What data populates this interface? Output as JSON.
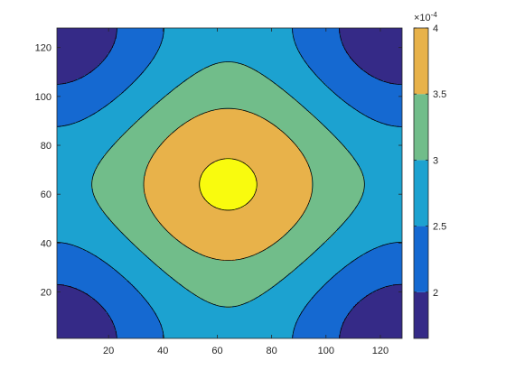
{
  "chart_data": {
    "type": "contour",
    "colormap": "parula",
    "x": {
      "min": 1,
      "max": 128,
      "ticks": [
        20,
        40,
        60,
        80,
        100,
        120
      ]
    },
    "y": {
      "min": 1,
      "max": 128,
      "ticks": [
        20,
        40,
        60,
        80,
        100,
        120
      ]
    },
    "levels": [
      0.00015,
      0.0002,
      0.00025,
      0.0003,
      0.00035,
      0.0004
    ],
    "level_colors": [
      "#352a87",
      "#1569d1",
      "#1ca2d0",
      "#71bd8a",
      "#e8b24a",
      "#f9fb0e"
    ],
    "field": {
      "center": [
        64,
        64
      ],
      "value_at_center": 0.000408,
      "value_at_corners": 0.000165,
      "value_at_edge_midpoints": 0.000265,
      "shape": "periodic cosine bump with period 128 in x and y"
    },
    "colorbar": {
      "min": 0.000165,
      "max": 0.0004,
      "ticks": [
        {
          "value": 0.0002,
          "label": "2"
        },
        {
          "value": 0.00025,
          "label": "2.5"
        },
        {
          "value": 0.0003,
          "label": "3"
        },
        {
          "value": 0.00035,
          "label": "3.5"
        },
        {
          "value": 0.0004,
          "label": "4"
        }
      ],
      "scale_label": {
        "base": "×10",
        "exponent": "-4"
      }
    }
  }
}
